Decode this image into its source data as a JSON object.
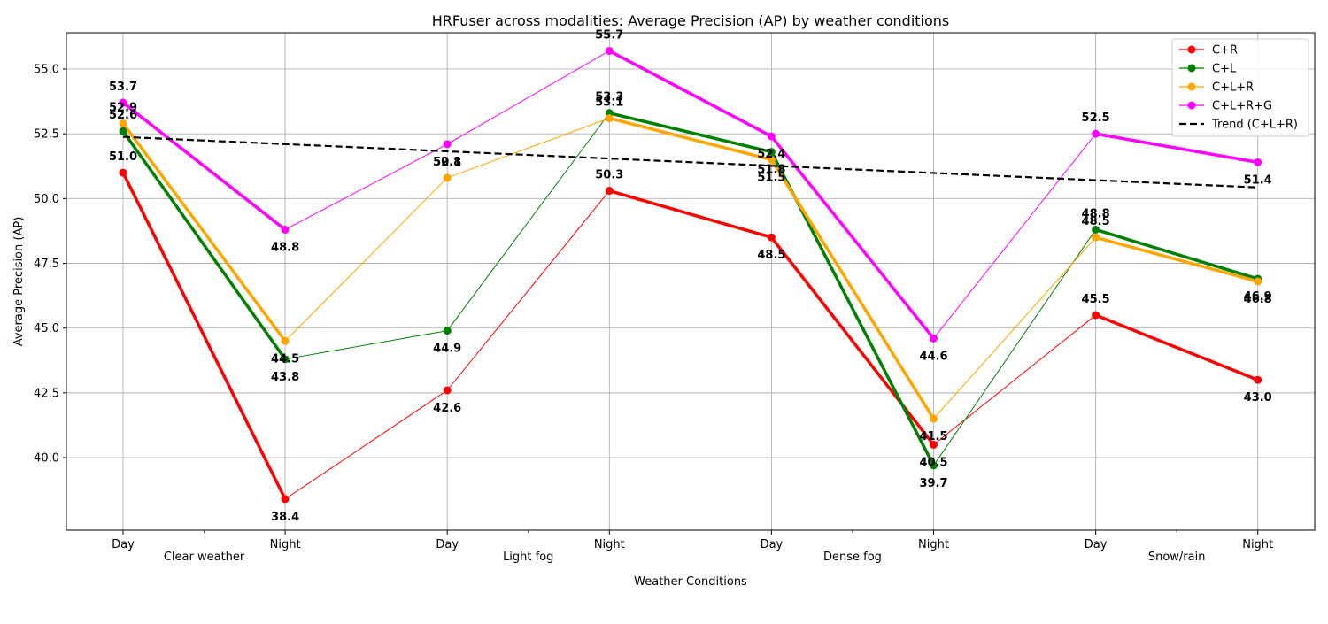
{
  "chart_data": {
    "type": "line",
    "title": "HRFuser across modalities: Average Precision (AP) by weather conditions",
    "xlabel": "Weather Conditions",
    "ylabel": "Average Precision (AP)",
    "categories": [
      "Day",
      "Night",
      "Day",
      "Night",
      "Day",
      "Night",
      "Day",
      "Night"
    ],
    "groups": [
      "Clear weather",
      "Light fog",
      "Dense fog",
      "Snow/rain"
    ],
    "yticks": [
      "40.0",
      "42.5",
      "45.0",
      "47.5",
      "50.0",
      "52.5",
      "55.0"
    ],
    "ylim": [
      37.2,
      56.4
    ],
    "grid": true,
    "legend_position": "top-right",
    "series": [
      {
        "name": "C+R",
        "color": "#ff0000",
        "values": [
          51.0,
          38.4,
          42.6,
          50.3,
          48.5,
          40.5,
          45.5,
          43.0
        ],
        "labels": [
          "51.0",
          "38.4",
          "42.6",
          "50.3",
          "48.5",
          "40.5",
          "45.5",
          "43.0"
        ]
      },
      {
        "name": "C+L",
        "color": "#008000",
        "values": [
          52.6,
          43.8,
          44.9,
          53.3,
          51.8,
          39.7,
          48.8,
          46.9
        ],
        "labels": [
          "52.6",
          "43.8",
          "44.9",
          "53.3",
          "51.8",
          "39.7",
          "48.8",
          "46.9"
        ]
      },
      {
        "name": "C+L+R",
        "color": "#ffa500",
        "values": [
          52.9,
          44.5,
          50.8,
          53.1,
          51.5,
          41.5,
          48.5,
          46.8
        ],
        "labels": [
          "52.9",
          "44.5",
          "50.8",
          "53.1",
          "51.5",
          "41.5",
          "48.5",
          "46.8"
        ]
      },
      {
        "name": "C+L+R+G",
        "color": "#ff00ff",
        "values": [
          53.7,
          48.8,
          52.1,
          55.7,
          52.4,
          44.6,
          52.5,
          51.4
        ],
        "labels": [
          "53.7",
          "48.8",
          "52.1",
          "55.7",
          "52.4",
          "44.6",
          "52.5",
          "51.4"
        ]
      }
    ],
    "trend": {
      "name": "Trend (C+L+R)",
      "color": "#000000",
      "start": 52.38,
      "end": 50.43
    }
  }
}
